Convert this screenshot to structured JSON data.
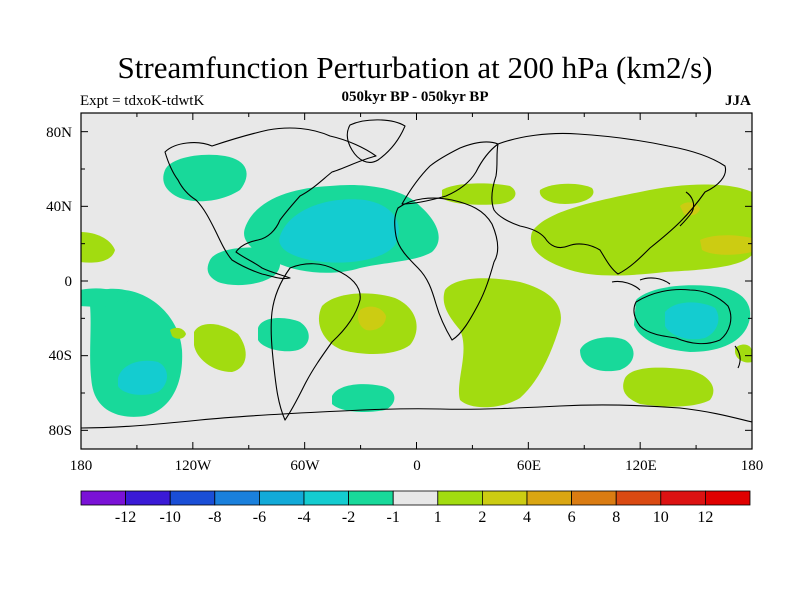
{
  "title": "Streamfunction Perturbation at 200 hPa (km2/s)",
  "left_subtitle": "Expt = tdxoK-tdwtK",
  "center_subtitle": "050kyr BP - 050kyr BP",
  "right_subtitle": "JJA",
  "lat_ticks": [
    "80N",
    "40N",
    "0",
    "40S",
    "80S"
  ],
  "lon_ticks": [
    "180",
    "120W",
    "60W",
    "0",
    "60E",
    "120E",
    "180"
  ],
  "colorbar_labels": [
    "-12",
    "-10",
    "-8",
    "-6",
    "-4",
    "-2",
    "-1",
    "1",
    "2",
    "4",
    "6",
    "8",
    "10",
    "12"
  ],
  "colorbar_colors": [
    "#7a12d6",
    "#3a1ad6",
    "#1a4ed6",
    "#1a80dc",
    "#12aad8",
    "#14ccd0",
    "#18d99a",
    "#e8e8e8",
    "#a2dc10",
    "#cccc12",
    "#daa612",
    "#da7c12",
    "#da4a12",
    "#dc1212",
    "#e00000"
  ],
  "colors": {
    "neutral": "#e8e8e8",
    "cyan": "#14ccd0",
    "sea_green": "#18d99a",
    "lime": "#a2dc10",
    "olive": "#cccc12",
    "coastline": "#000000"
  }
}
